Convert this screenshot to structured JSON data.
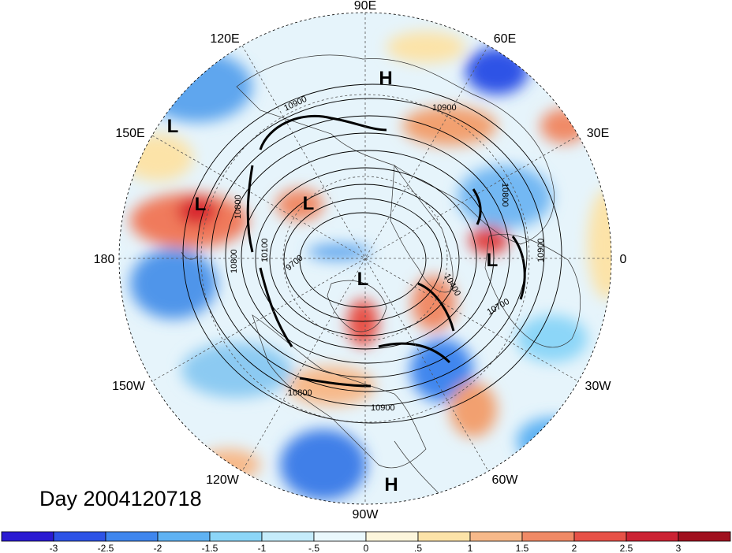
{
  "day_label": "Day 2004120718",
  "longitude_labels": [
    {
      "text": "90E",
      "angle": 0
    },
    {
      "text": "60E",
      "angle": 30
    },
    {
      "text": "30E",
      "angle": 60
    },
    {
      "text": "0",
      "angle": 90
    },
    {
      "text": "30W",
      "angle": 120
    },
    {
      "text": "60W",
      "angle": 150
    },
    {
      "text": "90W",
      "angle": 180
    },
    {
      "text": "120W",
      "angle": 210
    },
    {
      "text": "150W",
      "angle": 240
    },
    {
      "text": "180",
      "angle": 270
    },
    {
      "text": "150E",
      "angle": 300
    },
    {
      "text": "120E",
      "angle": 330
    }
  ],
  "pressure_markers": [
    {
      "text": "H",
      "id": "high-arctic-siberia"
    },
    {
      "text": "H",
      "id": "high-central-america"
    },
    {
      "text": "L",
      "id": "low-north-pacific-west"
    },
    {
      "text": "L",
      "id": "low-north-pacific"
    },
    {
      "text": "L",
      "id": "low-east-siberia"
    },
    {
      "text": "L",
      "id": "low-canada"
    },
    {
      "text": "L",
      "id": "low-europe"
    }
  ],
  "contour_labels": [
    "10900",
    "10900",
    "10800",
    "10800",
    "10800",
    "10100",
    "9700",
    "10400",
    "10700",
    "10900",
    "10800",
    "10900"
  ],
  "colorbar": {
    "ticks": [
      "-3",
      "-2.5",
      "-2",
      "-1.5",
      "-1",
      "-.5",
      "0",
      ".5",
      "1",
      "1.5",
      "2",
      "2.5",
      "3"
    ],
    "colors": [
      "#2a1ad2",
      "#2d53e6",
      "#3f86ee",
      "#5fb2f3",
      "#8cd6f8",
      "#c5ecfb",
      "#eaf8fc",
      "#fdf6dc",
      "#fce3a8",
      "#f7b98a",
      "#f08a66",
      "#e75147",
      "#cc2233",
      "#a0101e"
    ]
  }
}
